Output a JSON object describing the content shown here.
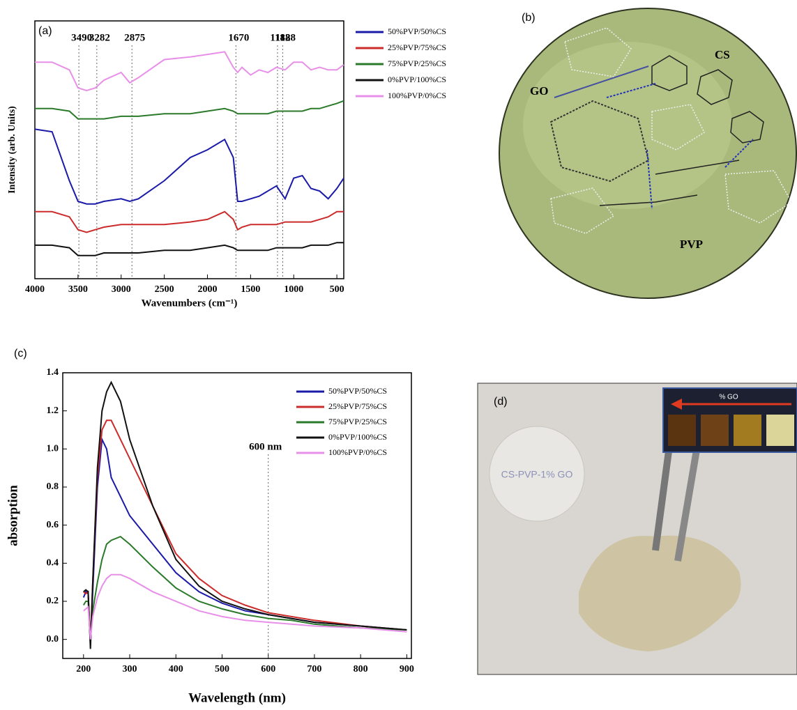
{
  "chart_data": [
    {
      "type": "line",
      "panel_label": "(a)",
      "x_label": "Wavenumbers (cm⁻¹)",
      "y_label": "Intensity (arb. Units)",
      "x": [
        4000,
        3800,
        3600,
        3500,
        3400,
        3300,
        3200,
        3000,
        2900,
        2800,
        2500,
        2200,
        2000,
        1800,
        1700,
        1650,
        1600,
        1500,
        1400,
        1300,
        1200,
        1100,
        1000,
        900,
        800,
        700,
        600,
        500,
        420
      ],
      "xlim": [
        4000,
        420
      ],
      "ylim": [
        0,
        100
      ],
      "xticks": [
        4000,
        3500,
        3000,
        2500,
        2000,
        1500,
        1000,
        500
      ],
      "vlines": [
        3490,
        3282,
        2875,
        1670,
        1188,
        1128
      ],
      "series": [
        {
          "name": "50%PVP/50%CS",
          "color": "#1a1aa8",
          "values": [
            58,
            57,
            38,
            30,
            29,
            29,
            30,
            31,
            30,
            31,
            38,
            47,
            50,
            54,
            47,
            30,
            30,
            31,
            32,
            34,
            36,
            31,
            39,
            40,
            35,
            34,
            31,
            35,
            39
          ]
        },
        {
          "name": "25%PVP/75%CS",
          "color": "#cc2b2b",
          "values": [
            26,
            26,
            24,
            19,
            18,
            19,
            20,
            21,
            21,
            21,
            21,
            22,
            23,
            26,
            23,
            19,
            20,
            21,
            21,
            21,
            21,
            22,
            22,
            22,
            22,
            23,
            24,
            26,
            26
          ]
        },
        {
          "name": "75%PVP/25%CS",
          "color": "#2a7a2a",
          "values": [
            66,
            66,
            65,
            62,
            62,
            62,
            62,
            63,
            63,
            63,
            64,
            64,
            65,
            66,
            65,
            64,
            64,
            64,
            64,
            64,
            65,
            65,
            65,
            65,
            66,
            66,
            67,
            68,
            69
          ]
        },
        {
          "name": "0%PVP/100%CS",
          "color": "#111111",
          "values": [
            13,
            13,
            12,
            9,
            9,
            9,
            10,
            10,
            10,
            10,
            11,
            11,
            12,
            13,
            12,
            11,
            11,
            11,
            11,
            11,
            12,
            12,
            12,
            12,
            13,
            13,
            13,
            14,
            14
          ]
        },
        {
          "name": "100%PVP/0%CS",
          "color": "#e88fe8",
          "values": [
            84,
            84,
            81,
            74,
            73,
            74,
            77,
            80,
            76,
            78,
            85,
            86,
            87,
            88,
            82,
            80,
            82,
            79,
            81,
            80,
            82,
            81,
            84,
            84,
            81,
            82,
            81,
            81,
            83
          ]
        }
      ]
    },
    {
      "type": "line",
      "panel_label": "(c)",
      "x_label": "Wavelength (nm)",
      "y_label": "absorption",
      "x": [
        200,
        205,
        210,
        215,
        220,
        230,
        240,
        250,
        260,
        280,
        300,
        350,
        400,
        450,
        500,
        550,
        600,
        650,
        700,
        800,
        900
      ],
      "xlim": [
        155,
        910
      ],
      "ylim": [
        -0.1,
        1.4
      ],
      "xticks": [
        200,
        300,
        400,
        500,
        600,
        700,
        800,
        900
      ],
      "yticks": [
        {
          "value": 0,
          "label": "0.0"
        },
        0.2,
        0.4,
        0.6,
        0.8,
        {
          "value": 1,
          "label": "1.0"
        },
        1.2,
        1.4
      ],
      "vlines": [
        {
          "value": 600,
          "label": "600 nm"
        }
      ],
      "series": [
        {
          "name": "50%PVP/50%CS",
          "color": "#1a1aa8",
          "values": [
            0.22,
            0.25,
            0.24,
            -0.03,
            0.25,
            0.8,
            1.05,
            1.0,
            0.85,
            0.75,
            0.65,
            0.5,
            0.35,
            0.25,
            0.19,
            0.15,
            0.13,
            0.11,
            0.09,
            0.07,
            0.05
          ]
        },
        {
          "name": "25%PVP/75%CS",
          "color": "#cc2b2b",
          "values": [
            0.25,
            0.24,
            0.25,
            -0.02,
            0.3,
            0.85,
            1.1,
            1.15,
            1.15,
            1.05,
            0.95,
            0.7,
            0.45,
            0.32,
            0.23,
            0.18,
            0.14,
            0.12,
            0.1,
            0.07,
            0.05
          ]
        },
        {
          "name": "75%PVP/25%CS",
          "color": "#2a7a2a",
          "values": [
            0.18,
            0.2,
            0.2,
            0.0,
            0.15,
            0.3,
            0.42,
            0.5,
            0.52,
            0.54,
            0.5,
            0.38,
            0.27,
            0.2,
            0.16,
            0.13,
            0.11,
            0.1,
            0.08,
            0.06,
            0.05
          ]
        },
        {
          "name": "0%PVP/100%CS",
          "color": "#111111",
          "values": [
            0.25,
            0.26,
            0.25,
            -0.05,
            0.3,
            0.9,
            1.2,
            1.3,
            1.35,
            1.25,
            1.05,
            0.7,
            0.42,
            0.28,
            0.2,
            0.16,
            0.13,
            0.11,
            0.09,
            0.07,
            0.05
          ]
        },
        {
          "name": "100%PVP/0%CS",
          "color": "#e88fe8",
          "values": [
            0.15,
            0.16,
            0.17,
            0.0,
            0.12,
            0.22,
            0.28,
            0.32,
            0.34,
            0.34,
            0.32,
            0.25,
            0.2,
            0.15,
            0.12,
            0.1,
            0.09,
            0.08,
            0.07,
            0.06,
            0.04
          ]
        }
      ]
    }
  ],
  "diagram": {
    "panel_label": "(b)",
    "labels": [
      "GO",
      "CS",
      "PVP"
    ]
  },
  "photo": {
    "panel_label": "(d)",
    "inset_label": "% GO",
    "film_text": "CS-PVP-1% GO"
  }
}
